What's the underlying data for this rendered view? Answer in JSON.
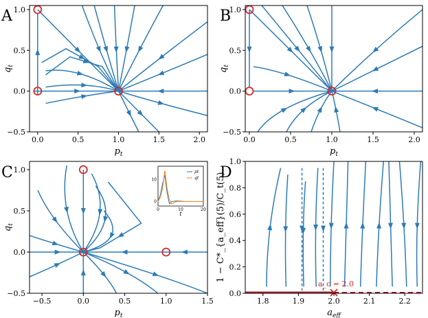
{
  "colors": {
    "stream": "#2c7bb6",
    "marker": "#d62728",
    "line": "#b2182b",
    "inset_orange": "#ff7f0e",
    "inset_blue": "#1f77b4"
  },
  "chart_data": [
    {
      "panel": "A",
      "type": "streamplot",
      "xlabel": "p_t",
      "ylabel": "q_t",
      "xlim": [
        -0.1,
        2.1
      ],
      "ylim": [
        -0.5,
        1.05
      ],
      "xticks": [
        0.0,
        0.5,
        1.0,
        1.5,
        2.0
      ],
      "xtick_labels": [
        "0.0",
        "0.5",
        "1.0",
        "1.5",
        "2.0"
      ],
      "yticks": [
        -0.5,
        0.0,
        0.5,
        1.0
      ],
      "ytick_labels": [
        "−0.5",
        "0.0",
        "0.5",
        "1.0"
      ],
      "fixed_points": [
        [
          0,
          1
        ],
        [
          0,
          0
        ],
        [
          1,
          0
        ]
      ],
      "streamlines": [
        [
          [
            -0.05,
            0
          ],
          [
            0.5,
            0
          ],
          [
            1,
            0
          ]
        ],
        [
          [
            2.1,
            0
          ],
          [
            1.5,
            0
          ],
          [
            1,
            0
          ]
        ],
        [
          [
            0,
            -0.05
          ],
          [
            0,
            0.5
          ],
          [
            0,
            0.95
          ]
        ],
        [
          [
            0,
            1
          ],
          [
            0.5,
            0.5
          ],
          [
            1,
            0
          ]
        ],
        [
          [
            0.1,
            0.05
          ],
          [
            0.6,
            0.12
          ],
          [
            1,
            0
          ]
        ],
        [
          [
            0.1,
            0.25
          ],
          [
            0.5,
            0.3
          ],
          [
            1,
            0
          ]
        ],
        [
          [
            0.05,
            0.35
          ],
          [
            0.35,
            0.52
          ],
          [
            0.75,
            0.3
          ],
          [
            1,
            0
          ]
        ],
        [
          [
            0.1,
            0.2
          ],
          [
            0.4,
            0.42
          ],
          [
            0.8,
            0.3
          ],
          [
            1,
            0
          ]
        ],
        [
          [
            0.55,
            1.05
          ],
          [
            0.75,
            0.5
          ],
          [
            1,
            0
          ]
        ],
        [
          [
            0.7,
            1.05
          ],
          [
            0.85,
            0.5
          ],
          [
            1,
            0
          ]
        ],
        [
          [
            0.95,
            1.05
          ],
          [
            0.97,
            0.5
          ],
          [
            1,
            0
          ]
        ],
        [
          [
            1.2,
            1.05
          ],
          [
            1.1,
            0.5
          ],
          [
            1,
            0
          ]
        ],
        [
          [
            1.55,
            1.05
          ],
          [
            1.25,
            0.5
          ],
          [
            1,
            0
          ]
        ],
        [
          [
            2.1,
            0.85
          ],
          [
            1.5,
            0.4
          ],
          [
            1,
            0
          ]
        ],
        [
          [
            2.1,
            0.45
          ],
          [
            1.5,
            0.2
          ],
          [
            1,
            0
          ]
        ],
        [
          [
            0.1,
            -0.15
          ],
          [
            0.6,
            -0.05
          ],
          [
            1,
            0
          ]
        ],
        [
          [
            1,
            0
          ],
          [
            1.5,
            -0.15
          ],
          [
            2.1,
            -0.3
          ]
        ],
        [
          [
            1,
            0
          ],
          [
            1.3,
            -0.3
          ],
          [
            1.5,
            -0.5
          ]
        ],
        [
          [
            1,
            0
          ],
          [
            1.15,
            -0.3
          ],
          [
            1.25,
            -0.5
          ]
        ]
      ]
    },
    {
      "panel": "B",
      "type": "streamplot",
      "xlabel": "p_t",
      "ylabel": "q_t",
      "xlim": [
        -0.05,
        2.1
      ],
      "ylim": [
        -0.5,
        1.05
      ],
      "xticks": [
        0.0,
        0.5,
        1.0,
        1.5,
        2.0
      ],
      "xtick_labels": [
        "0.0",
        "0.5",
        "1.0",
        "1.5",
        "2.0"
      ],
      "yticks": [
        -0.5,
        0.0,
        0.5,
        1.0
      ],
      "ytick_labels": [
        "−0.5",
        "0.0",
        "0.5",
        "1.0"
      ],
      "fixed_points": [
        [
          0,
          1
        ],
        [
          0,
          0
        ],
        [
          1,
          0
        ]
      ],
      "streamlines": [
        [
          [
            0,
            1
          ],
          [
            0,
            0.5
          ],
          [
            0,
            0.05
          ]
        ],
        [
          [
            0,
            1
          ],
          [
            0.5,
            0.5
          ],
          [
            1,
            0
          ]
        ],
        [
          [
            0.15,
            1.05
          ],
          [
            0.6,
            0.5
          ],
          [
            1,
            0
          ]
        ],
        [
          [
            0.4,
            1.05
          ],
          [
            0.75,
            0.5
          ],
          [
            1,
            0
          ]
        ],
        [
          [
            0.7,
            1.05
          ],
          [
            0.88,
            0.5
          ],
          [
            1,
            0
          ]
        ],
        [
          [
            1.0,
            1.05
          ],
          [
            1.0,
            0.5
          ],
          [
            1,
            0
          ]
        ],
        [
          [
            2.1,
            1.0
          ],
          [
            1.5,
            0.5
          ],
          [
            1,
            0
          ]
        ],
        [
          [
            2.1,
            0.55
          ],
          [
            1.5,
            0.25
          ],
          [
            1,
            0
          ]
        ],
        [
          [
            2.1,
            0
          ],
          [
            1.5,
            0
          ],
          [
            1,
            0
          ]
        ],
        [
          [
            0.05,
            0
          ],
          [
            0.5,
            0
          ],
          [
            1,
            0
          ]
        ],
        [
          [
            0.05,
            0.3
          ],
          [
            0.4,
            0.25
          ],
          [
            1,
            0
          ]
        ],
        [
          [
            0.1,
            -0.5
          ],
          [
            0.3,
            -0.2
          ],
          [
            1,
            0
          ]
        ],
        [
          [
            0.45,
            -0.5
          ],
          [
            0.6,
            -0.2
          ],
          [
            1,
            0
          ]
        ],
        [
          [
            0.75,
            -0.5
          ],
          [
            0.85,
            -0.2
          ],
          [
            1,
            0
          ]
        ],
        [
          [
            1.1,
            -0.5
          ],
          [
            1.05,
            -0.2
          ],
          [
            1,
            0
          ]
        ],
        [
          [
            2.1,
            -0.45
          ],
          [
            1.5,
            -0.2
          ],
          [
            1,
            0
          ]
        ]
      ]
    },
    {
      "panel": "C",
      "type": "streamplot",
      "xlabel": "p_t",
      "ylabel": "q_t",
      "xlim": [
        -0.65,
        1.5
      ],
      "ylim": [
        -0.5,
        1.1
      ],
      "xticks": [
        -0.5,
        0.0,
        0.5,
        1.0,
        1.5
      ],
      "xtick_labels": [
        "−0.5",
        "0.0",
        "0.5",
        "1.0",
        "1.5"
      ],
      "yticks": [
        -0.5,
        0.0,
        0.5,
        1.0
      ],
      "ytick_labels": [
        "−0.5",
        "0.0",
        "0.5",
        "1.0"
      ],
      "fixed_points": [
        [
          0,
          1
        ],
        [
          0,
          0
        ],
        [
          1,
          0
        ]
      ],
      "streamlines": [
        [
          [
            -0.65,
            0
          ],
          [
            -0.3,
            0
          ],
          [
            0,
            0
          ]
        ],
        [
          [
            1,
            0
          ],
          [
            0.5,
            0
          ],
          [
            0,
            0
          ]
        ],
        [
          [
            1.5,
            0
          ],
          [
            1.2,
            0
          ],
          [
            1,
            0
          ]
        ],
        [
          [
            0,
            1
          ],
          [
            0,
            0.5
          ],
          [
            0,
            0
          ]
        ],
        [
          [
            0,
            -0.5
          ],
          [
            0,
            -0.25
          ],
          [
            0,
            0
          ]
        ],
        [
          [
            -0.2,
            1.05
          ],
          [
            -0.3,
            0.5
          ],
          [
            0,
            0
          ]
        ],
        [
          [
            -0.55,
            0.75
          ],
          [
            -0.4,
            0.4
          ],
          [
            0,
            0
          ]
        ],
        [
          [
            -0.65,
            0.2
          ],
          [
            -0.35,
            0.1
          ],
          [
            0,
            0
          ]
        ],
        [
          [
            0.1,
            0.95
          ],
          [
            0.35,
            0.5
          ],
          [
            0,
            0
          ]
        ],
        [
          [
            0.15,
            0.8
          ],
          [
            0.45,
            0.4
          ],
          [
            0,
            0
          ]
        ],
        [
          [
            0.25,
            0.5
          ],
          [
            0.55,
            0.15
          ],
          [
            0,
            0
          ]
        ],
        [
          [
            0.3,
            0.85
          ],
          [
            0.7,
            0.35
          ],
          [
            0.2,
            0.05
          ],
          [
            0,
            0
          ]
        ],
        [
          [
            0,
            0
          ],
          [
            1.0,
            -0.3
          ],
          [
            1.5,
            -0.5
          ]
        ],
        [
          [
            0,
            0
          ],
          [
            0.6,
            -0.25
          ],
          [
            0.9,
            -0.5
          ]
        ],
        [
          [
            0,
            0
          ],
          [
            0.3,
            -0.3
          ],
          [
            0.4,
            -0.5
          ]
        ],
        [
          [
            -0.65,
            -0.3
          ],
          [
            -0.3,
            -0.15
          ],
          [
            0,
            0
          ]
        ]
      ],
      "inset": {
        "type": "line",
        "xlabel": "t",
        "xticks": [
          0,
          10,
          20
        ],
        "xtick_labels": [
          "0",
          "10",
          "20"
        ],
        "yticks": [
          0,
          10
        ],
        "ytick_labels": [
          "0",
          "10"
        ],
        "xlim": [
          0,
          20
        ],
        "ylim": [
          -2,
          16
        ],
        "series": [
          {
            "name": "p_t",
            "color": "#1f77b4",
            "x": [
              0,
              1,
              2,
              3,
              4,
              5,
              6,
              8,
              10,
              12,
              15,
              20
            ],
            "y": [
              0,
              3,
              8,
              12,
              4,
              -1,
              0,
              0.3,
              0.2,
              0,
              0,
              0
            ]
          },
          {
            "name": "q_t",
            "color": "#ff7f0e",
            "x": [
              0,
              1,
              2,
              3,
              4,
              5,
              6,
              8,
              10,
              12,
              15,
              20
            ],
            "y": [
              0,
              2,
              6,
              14,
              6,
              1,
              -1,
              0,
              0.1,
              0,
              0,
              0
            ]
          }
        ]
      }
    },
    {
      "panel": "D",
      "type": "streamplot",
      "xlabel": "a_eff",
      "ylabel": "1 − C*_{a_eff}(5)/C_t(5)",
      "xlim": [
        1.75,
        2.25
      ],
      "ylim": [
        0.0,
        1.0
      ],
      "xticks": [
        1.8,
        1.9,
        2.0,
        2.1,
        2.2
      ],
      "xtick_labels": [
        "1.8",
        "1.9",
        "2.0",
        "2.1",
        "2.2"
      ],
      "yticks": [
        0.0,
        0.2,
        0.4,
        0.6,
        0.8,
        1.0
      ],
      "ytick_labels": [
        "0.0",
        "0.2",
        "0.4",
        "0.6",
        "0.8",
        "1.0"
      ],
      "annotation": "a_c = 2.0",
      "critical_point": [
        2.0,
        0.0
      ],
      "streamlines": [
        [
          [
            1.81,
            0.05
          ],
          [
            1.81,
            0.5
          ],
          [
            1.85,
            0.95
          ]
        ],
        [
          [
            1.87,
            0.9
          ],
          [
            1.86,
            0.5
          ],
          [
            1.865,
            0.05
          ]
        ],
        [
          [
            1.92,
            0.85
          ],
          [
            1.91,
            0.5
          ],
          [
            1.915,
            0.05
          ]
        ],
        [
          [
            1.955,
            0.95
          ],
          [
            1.945,
            0.5
          ],
          [
            1.95,
            0.05
          ]
        ],
        [
          [
            2.0,
            1.0
          ],
          [
            1.99,
            0.5
          ],
          [
            1.99,
            0.05
          ]
        ],
        [
          [
            2.03,
            0.05
          ],
          [
            2.035,
            0.5
          ],
          [
            2.04,
            1.0
          ]
        ],
        [
          [
            2.075,
            0.05
          ],
          [
            2.08,
            0.5
          ],
          [
            2.09,
            1.0
          ]
        ],
        [
          [
            2.12,
            0.05
          ],
          [
            2.125,
            0.5
          ],
          [
            2.14,
            1.0
          ]
        ],
        [
          [
            2.155,
            1.0
          ],
          [
            2.16,
            0.5
          ],
          [
            2.165,
            0.05
          ]
        ],
        [
          [
            2.185,
            1.0
          ],
          [
            2.2,
            0.5
          ],
          [
            2.205,
            0.05
          ]
        ],
        [
          [
            2.245,
            1.0
          ],
          [
            2.23,
            0.5
          ],
          [
            2.235,
            0.05
          ]
        ]
      ],
      "dashed_streamlines": [
        [
          [
            1.97,
            0.95
          ],
          [
            1.97,
            0.5
          ],
          [
            1.97,
            0.02
          ]
        ],
        [
          [
            1.91,
            0.95
          ],
          [
            1.91,
            0.5
          ],
          [
            1.91,
            0.02
          ]
        ]
      ]
    }
  ]
}
